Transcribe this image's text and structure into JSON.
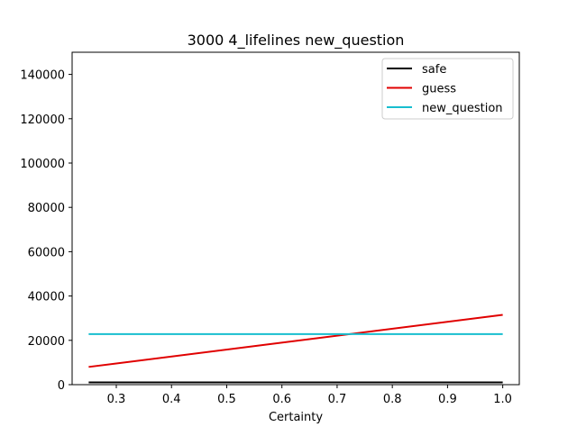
{
  "chart_data": {
    "type": "line",
    "title": "3000 4_lifelines new_question",
    "xlabel": "Certainty",
    "ylabel": "",
    "xlim": [
      0.22,
      1.03
    ],
    "ylim": [
      0,
      150000
    ],
    "xticks": [
      0.3,
      0.4,
      0.5,
      0.6,
      0.7,
      0.8,
      0.9,
      1.0
    ],
    "xtick_labels": [
      "0.3",
      "0.4",
      "0.5",
      "0.6",
      "0.7",
      "0.8",
      "0.9",
      "1.0"
    ],
    "yticks": [
      0,
      20000,
      40000,
      60000,
      80000,
      100000,
      120000,
      140000
    ],
    "ytick_labels": [
      "0",
      "20000",
      "40000",
      "60000",
      "80000",
      "100000",
      "120000",
      "140000"
    ],
    "grid": false,
    "legend_position": "top-right",
    "series": [
      {
        "name": "safe",
        "color": "#000000",
        "x": [
          0.25,
          1.0
        ],
        "y": [
          1000,
          1000
        ]
      },
      {
        "name": "guess",
        "color": "#e00000",
        "x": [
          0.25,
          1.0
        ],
        "y": [
          8000,
          31500
        ]
      },
      {
        "name": "new_question",
        "color": "#17becf",
        "x": [
          0.25,
          1.0
        ],
        "y": [
          22800,
          22800
        ]
      }
    ]
  }
}
